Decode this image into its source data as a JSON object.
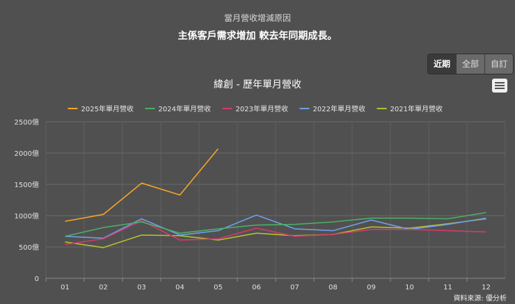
{
  "header": {
    "caption": "當月營收增減原因",
    "reason": "主係客戶需求增加 較去年同期成長。"
  },
  "range_buttons": [
    "近期",
    "全部",
    "自訂"
  ],
  "range_selected": "近期",
  "menu_icon": "hamburger-menu-icon",
  "footer": {
    "source": "資料來源: 優分析"
  },
  "chart_data": {
    "type": "line",
    "title": "緯創 - 歷年單月營收",
    "categories": [
      "01",
      "02",
      "03",
      "04",
      "05",
      "06",
      "07",
      "08",
      "09",
      "10",
      "11",
      "12"
    ],
    "y_tick_labels": [
      "0",
      "500億",
      "1000億",
      "1500億",
      "2000億",
      "2500億"
    ],
    "y_ticks": [
      0,
      500,
      1000,
      1500,
      2000,
      2500
    ],
    "ylim": [
      0,
      2500
    ],
    "unit": "億",
    "grid": true,
    "legend_position": "top",
    "series": [
      {
        "name": "2025年單月營收",
        "color": "#f5a623",
        "values": [
          910,
          1020,
          1520,
          1330,
          2070,
          null,
          null,
          null,
          null,
          null,
          null,
          null
        ]
      },
      {
        "name": "2024年單月營收",
        "color": "#4caf68",
        "values": [
          670,
          810,
          900,
          720,
          790,
          850,
          860,
          900,
          960,
          960,
          950,
          1050
        ]
      },
      {
        "name": "2023年單月營收",
        "color": "#d8386c",
        "values": [
          540,
          630,
          920,
          610,
          630,
          800,
          670,
          700,
          780,
          780,
          760,
          740
        ]
      },
      {
        "name": "2022年單月營收",
        "color": "#6e9fe6",
        "values": [
          670,
          640,
          950,
          690,
          760,
          1010,
          790,
          760,
          930,
          780,
          860,
          960
        ]
      },
      {
        "name": "2021年單月營收",
        "color": "#b5c12c",
        "values": [
          580,
          490,
          690,
          680,
          610,
          720,
          680,
          700,
          820,
          800,
          870,
          950
        ]
      }
    ]
  }
}
